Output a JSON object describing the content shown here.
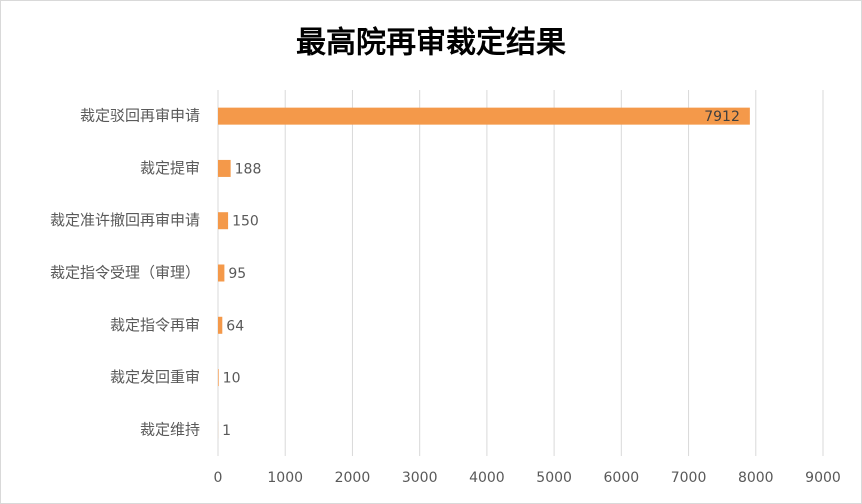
{
  "chart_data": {
    "type": "bar",
    "orientation": "horizontal",
    "title": "最高院再审裁定结果",
    "categories": [
      "裁定驳回再审申请",
      "裁定提审",
      "裁定准许撤回再审申请",
      "裁定指令受理（审理）",
      "裁定指令再审",
      "裁定发回重审",
      "裁定维持"
    ],
    "values": [
      7912,
      188,
      150,
      95,
      64,
      10,
      1
    ],
    "color": "#f4994a",
    "xlim": [
      0,
      9000
    ],
    "xticks": [
      0,
      1000,
      2000,
      3000,
      4000,
      5000,
      6000,
      7000,
      8000,
      9000
    ],
    "grid": true
  }
}
